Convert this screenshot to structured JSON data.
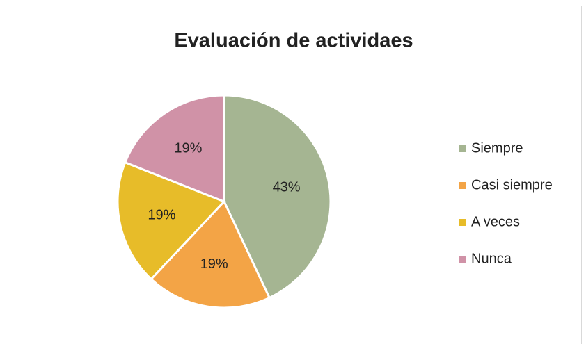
{
  "chart_data": {
    "type": "pie",
    "title": "Evaluación de actividaes",
    "categories": [
      "Siempre",
      "Casi siempre",
      "A veces",
      "Nunca"
    ],
    "values": [
      43,
      19,
      19,
      19
    ],
    "value_labels": [
      "43%",
      "19%",
      "19%",
      "19%"
    ],
    "colors": [
      "#a5b592",
      "#f3a446",
      "#e7bc29",
      "#d092a7"
    ],
    "legend": "right"
  }
}
